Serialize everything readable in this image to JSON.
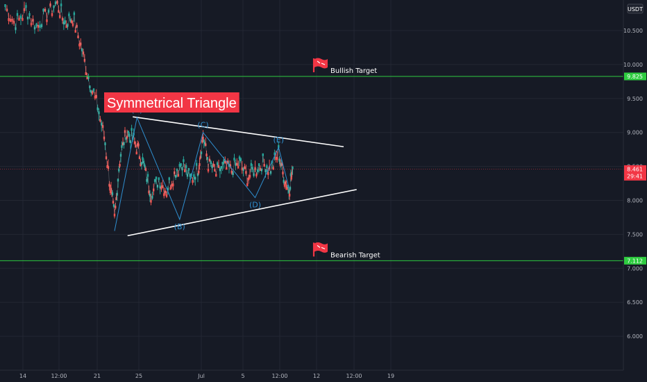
{
  "chart_data": {
    "type": "candlestick",
    "title": "Symmetrical Triangle",
    "currency_label": "USDT",
    "ylim": [
      5.5,
      10.95
    ],
    "y_ticks": [
      "10.500",
      "10.000",
      "9.500",
      "9.000",
      "8.500",
      "8.000",
      "7.500",
      "7.000",
      "6.500",
      "6.000"
    ],
    "x_ticks": [
      {
        "label": "14",
        "pos": 0
      },
      {
        "label": "12:00",
        "pos": 1
      },
      {
        "label": "21",
        "pos": 2
      },
      {
        "label": "25",
        "pos": 3
      },
      {
        "label": "Jul",
        "pos": 4
      },
      {
        "label": "5",
        "pos": 5
      },
      {
        "label": "12:00",
        "pos": 6
      },
      {
        "label": "12",
        "pos": 7
      },
      {
        "label": "12:00",
        "pos": 8
      },
      {
        "label": "19",
        "pos": 9
      }
    ],
    "grid": true,
    "levels": {
      "bullish": {
        "label": "Bullish Target",
        "value": 9.825,
        "badge": "9.825",
        "color": "#2ecc40"
      },
      "bearish": {
        "label": "Bearish Target",
        "value": 7.112,
        "badge": "7.112",
        "color": "#2ecc40"
      },
      "current": {
        "value": 8.461,
        "badge": "8.461",
        "timer": "29:41",
        "color": "#f23645"
      }
    },
    "triangle": {
      "upper": [
        {
          "t": 0.55,
          "v": 9.23
        },
        {
          "t": 4.6,
          "v": 8.79
        }
      ],
      "lower": [
        {
          "t": 0.45,
          "v": 7.48
        },
        {
          "t": 4.85,
          "v": 8.16
        }
      ]
    },
    "waves": [
      {
        "label": "(A)",
        "t": 0.63,
        "v": 9.22
      },
      {
        "label": "(B)",
        "t": 1.45,
        "v": 7.72
      },
      {
        "label": "(C)",
        "t": 1.9,
        "v": 9.0
      },
      {
        "label": "(D)",
        "t": 2.9,
        "v": 8.04
      },
      {
        "label": "(E)",
        "t": 3.35,
        "v": 8.78
      }
    ],
    "wave_path": [
      {
        "t": 0.2,
        "v": 7.55
      },
      {
        "t": 0.63,
        "v": 9.22
      },
      {
        "t": 1.45,
        "v": 7.72
      },
      {
        "t": 1.9,
        "v": 9.0
      },
      {
        "t": 2.9,
        "v": 8.04
      },
      {
        "t": 3.35,
        "v": 8.78
      },
      {
        "t": 3.55,
        "v": 8.18
      }
    ],
    "price_path": [
      {
        "t": -1.9,
        "v": 10.85
      },
      {
        "t": -1.7,
        "v": 10.6
      },
      {
        "t": -1.5,
        "v": 10.8
      },
      {
        "t": -1.3,
        "v": 10.55
      },
      {
        "t": -1.1,
        "v": 10.75
      },
      {
        "t": -0.9,
        "v": 10.9
      },
      {
        "t": -0.75,
        "v": 10.6
      },
      {
        "t": -0.6,
        "v": 10.7
      },
      {
        "t": -0.45,
        "v": 10.3
      },
      {
        "t": -0.3,
        "v": 9.8
      },
      {
        "t": -0.15,
        "v": 9.45
      },
      {
        "t": 0.0,
        "v": 8.95
      },
      {
        "t": 0.12,
        "v": 8.2
      },
      {
        "t": 0.2,
        "v": 7.75
      },
      {
        "t": 0.3,
        "v": 8.6
      },
      {
        "t": 0.42,
        "v": 9.0
      },
      {
        "t": 0.55,
        "v": 8.9
      },
      {
        "t": 0.66,
        "v": 8.75
      },
      {
        "t": 0.78,
        "v": 8.45
      },
      {
        "t": 0.9,
        "v": 8.1
      },
      {
        "t": 1.05,
        "v": 8.3
      },
      {
        "t": 1.2,
        "v": 8.15
      },
      {
        "t": 1.35,
        "v": 8.4
      },
      {
        "t": 1.5,
        "v": 8.55
      },
      {
        "t": 1.65,
        "v": 8.3
      },
      {
        "t": 1.8,
        "v": 8.45
      },
      {
        "t": 1.9,
        "v": 8.95
      },
      {
        "t": 2.0,
        "v": 8.55
      },
      {
        "t": 2.15,
        "v": 8.4
      },
      {
        "t": 2.3,
        "v": 8.5
      },
      {
        "t": 2.45,
        "v": 8.45
      },
      {
        "t": 2.6,
        "v": 8.55
      },
      {
        "t": 2.75,
        "v": 8.35
      },
      {
        "t": 2.9,
        "v": 8.45
      },
      {
        "t": 3.05,
        "v": 8.55
      },
      {
        "t": 3.2,
        "v": 8.45
      },
      {
        "t": 3.35,
        "v": 8.7
      },
      {
        "t": 3.45,
        "v": 8.35
      },
      {
        "t": 3.55,
        "v": 8.15
      },
      {
        "t": 3.62,
        "v": 8.46
      }
    ]
  }
}
